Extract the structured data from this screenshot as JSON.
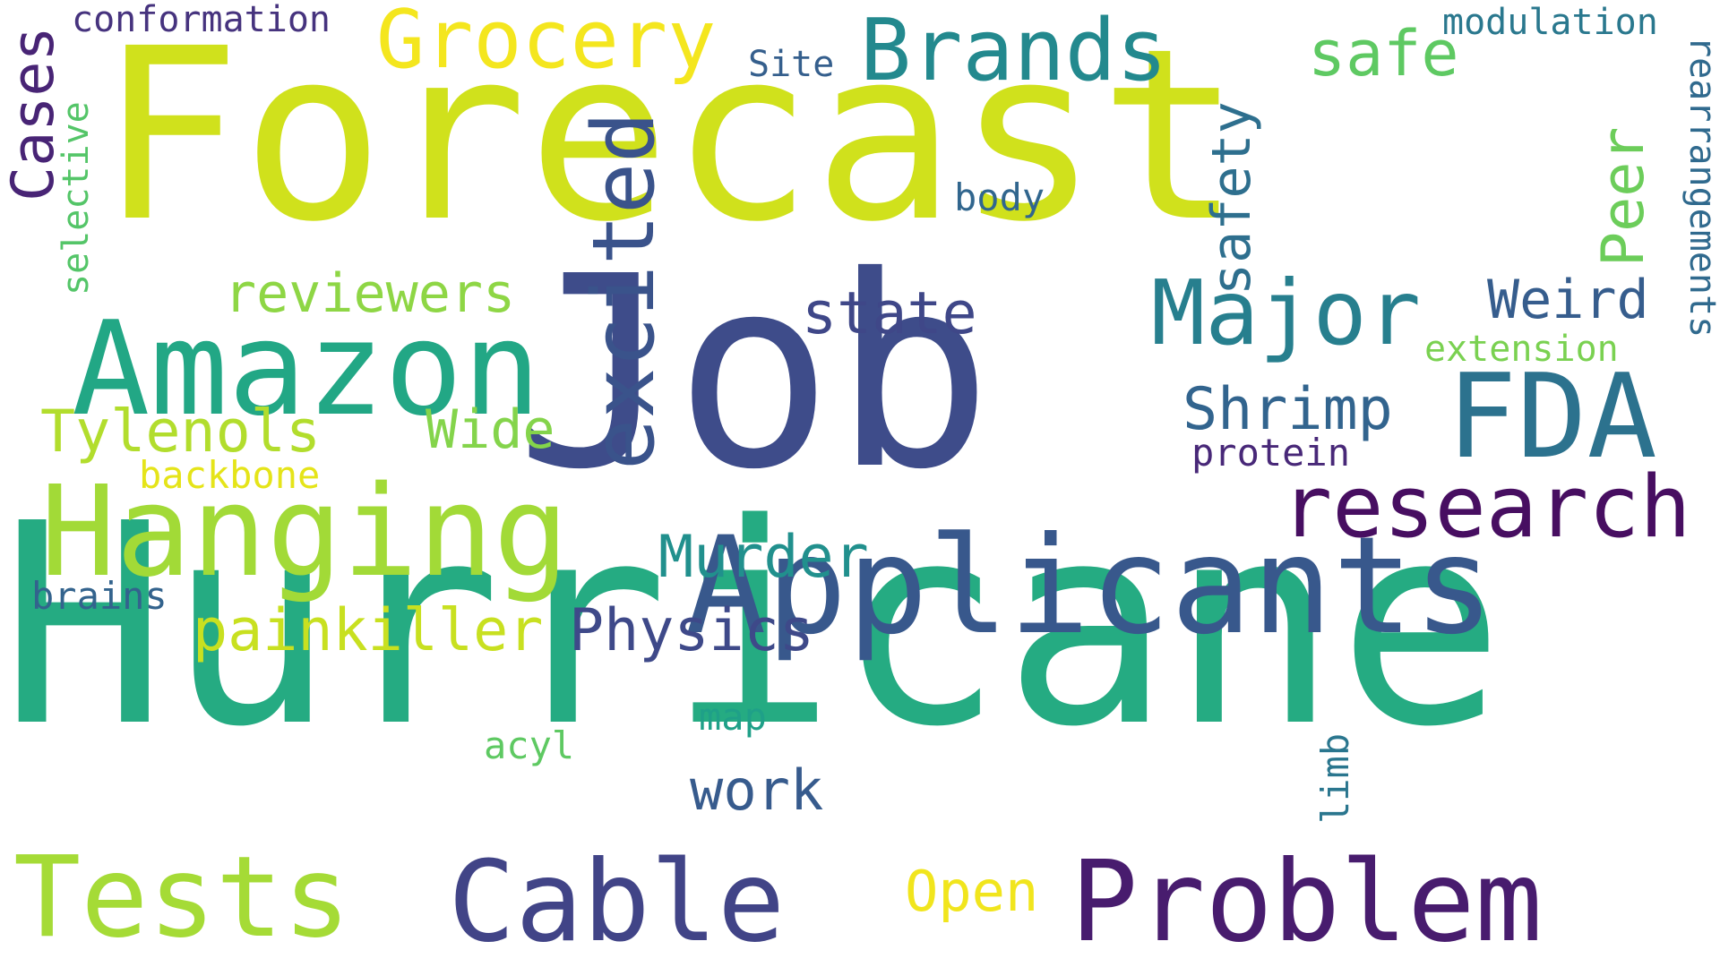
{
  "words": [
    {
      "text": "Forecast",
      "color": "#d0e11c"
    },
    {
      "text": "Hurricane",
      "color": "#25ab82"
    },
    {
      "text": "Job",
      "color": "#3e4c8a"
    },
    {
      "text": "Applicants",
      "color": "#38588c"
    },
    {
      "text": "Amazon",
      "color": "#22a785"
    },
    {
      "text": "Hanging",
      "color": "#a2da37"
    },
    {
      "text": "Problem",
      "color": "#481c6e"
    },
    {
      "text": "Cable",
      "color": "#414487"
    },
    {
      "text": "Tests",
      "color": "#a5db36"
    },
    {
      "text": "research",
      "color": "#470e61"
    },
    {
      "text": "FDA",
      "color": "#2c728e"
    },
    {
      "text": "Major",
      "color": "#277f8e"
    },
    {
      "text": "Brands",
      "color": "#23898e"
    },
    {
      "text": "Grocery",
      "color": "#f4e61e"
    },
    {
      "text": "Shrimp",
      "color": "#3a538b"
    },
    {
      "text": "excited",
      "color": "#2e6f8e"
    },
    {
      "text": "safety",
      "color": "#32648e"
    },
    {
      "text": "Murder",
      "color": "#21908d"
    },
    {
      "text": "Physics",
      "color": "#3e4989"
    },
    {
      "text": "painkiller",
      "color": "#c8e020"
    },
    {
      "text": "reviewers",
      "color": "#8ed645"
    },
    {
      "text": "Tylenols",
      "color": "#b2dd2d"
    },
    {
      "text": "Wide",
      "color": "#84d44b"
    },
    {
      "text": "state",
      "color": "#3f4788"
    },
    {
      "text": "Weird",
      "color": "#365d8d"
    },
    {
      "text": "safe",
      "color": "#5ec962"
    },
    {
      "text": "Peer",
      "color": "#6ccd5a"
    },
    {
      "text": "Cases",
      "color": "#482475"
    },
    {
      "text": "work",
      "color": "#375b8d"
    },
    {
      "text": "Open",
      "color": "#f1e51d"
    },
    {
      "text": "conformation",
      "color": "#46337e"
    },
    {
      "text": "modulation",
      "color": "#2a788e"
    },
    {
      "text": "rearrangements",
      "color": "#306a8e"
    },
    {
      "text": "extension",
      "color": "#7ad151"
    },
    {
      "text": "protein",
      "color": "#482878"
    },
    {
      "text": "Site",
      "color": "#355f8d"
    },
    {
      "text": "body",
      "color": "#31668e"
    },
    {
      "text": "selective",
      "color": "#54c568"
    },
    {
      "text": "backbone",
      "color": "#e5e419"
    },
    {
      "text": "brains",
      "color": "#33638d"
    },
    {
      "text": "map",
      "color": "#1fa088"
    },
    {
      "text": "acyl",
      "color": "#5ec962"
    },
    {
      "text": "limb",
      "color": "#2a768e"
    }
  ]
}
